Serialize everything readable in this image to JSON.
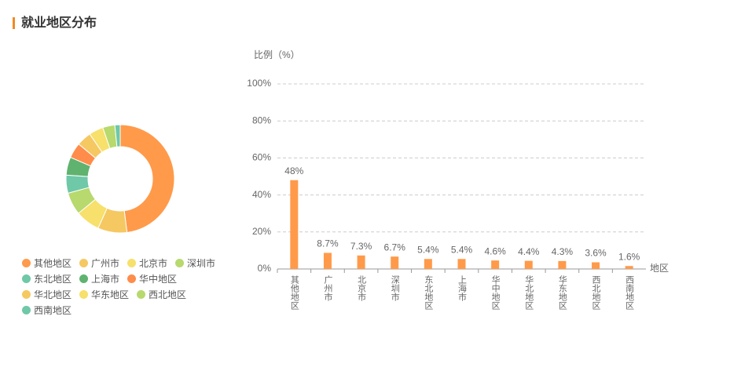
{
  "header": {
    "title": "就业地区分布"
  },
  "chart_data": [
    {
      "type": "pie",
      "categories": [
        "其他地区",
        "广州市",
        "北京市",
        "深圳市",
        "东北地区",
        "上海市",
        "华中地区",
        "华北地区",
        "华东地区",
        "西北地区",
        "西南地区"
      ],
      "values": [
        48,
        8.7,
        7.3,
        6.7,
        5.4,
        5.4,
        4.6,
        4.4,
        4.3,
        3.6,
        1.6
      ],
      "colors": [
        "#ff9a4a",
        "#f5c862",
        "#f7e06b",
        "#b7d96e",
        "#6fc8a8",
        "#5fb36f",
        "#ff8c4a",
        "#f5c862",
        "#f7e06b",
        "#b7d96e",
        "#6fc8a8"
      ]
    },
    {
      "type": "bar",
      "y_label": "比例（%）",
      "x_label": "地区",
      "categories": [
        "其他地区",
        "广州市",
        "北京市",
        "深圳市",
        "东北地区",
        "上海市",
        "华中地区",
        "华北地区",
        "华东地区",
        "西北地区",
        "西南地区"
      ],
      "values": [
        48,
        8.7,
        7.3,
        6.7,
        5.4,
        5.4,
        4.6,
        4.4,
        4.3,
        3.6,
        1.6
      ],
      "value_labels": [
        "48%",
        "8.7%",
        "7.3%",
        "6.7%",
        "5.4%",
        "5.4%",
        "4.6%",
        "4.4%",
        "4.3%",
        "3.6%",
        "1.6%"
      ],
      "color": "#ff9a4a",
      "ylim": [
        0,
        100
      ],
      "yticks": [
        {
          "value": 0,
          "label": "0%"
        },
        {
          "value": 20,
          "label": "20%"
        },
        {
          "value": 40,
          "label": "40%"
        },
        {
          "value": 60,
          "label": "60%"
        },
        {
          "value": 80,
          "label": "80%"
        },
        {
          "value": 100,
          "label": "100%"
        }
      ],
      "grid": true
    }
  ]
}
